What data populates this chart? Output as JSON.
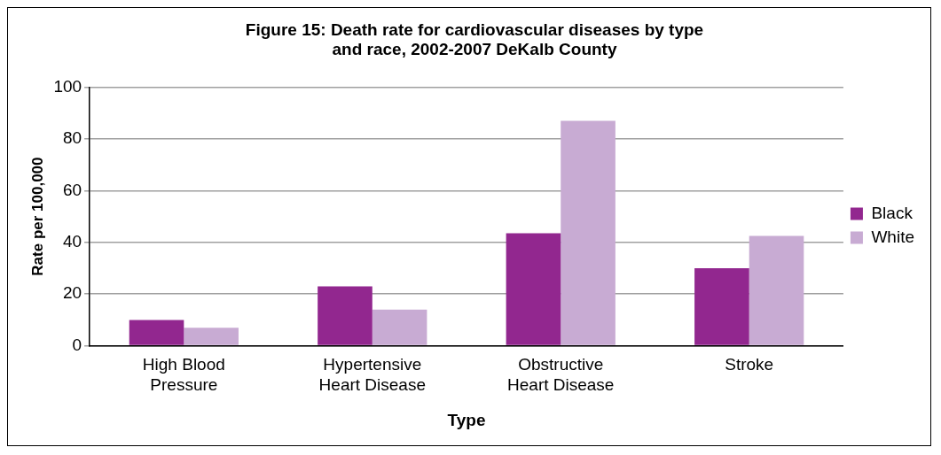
{
  "chart_data": {
    "type": "bar",
    "title": "Figure 15: Death rate for cardiovascular diseases by type and race, 2002-2007 DeKalb County",
    "xlabel": "Type",
    "ylabel": "Rate per 100,000",
    "categories": [
      "High Blood Pressure",
      "Hypertensive Heart Disease",
      "Obstructive Heart Disease",
      "Stroke"
    ],
    "series": [
      {
        "name": "Black",
        "color": "#92278f",
        "values": [
          10,
          23,
          43.5,
          30
        ]
      },
      {
        "name": "White",
        "color": "#c8abd3",
        "values": [
          7,
          14,
          87,
          42.5
        ]
      }
    ],
    "ylim": [
      0,
      100
    ],
    "yticks": [
      0,
      20,
      40,
      60,
      80,
      100
    ],
    "grid": "y",
    "legend": "right"
  }
}
